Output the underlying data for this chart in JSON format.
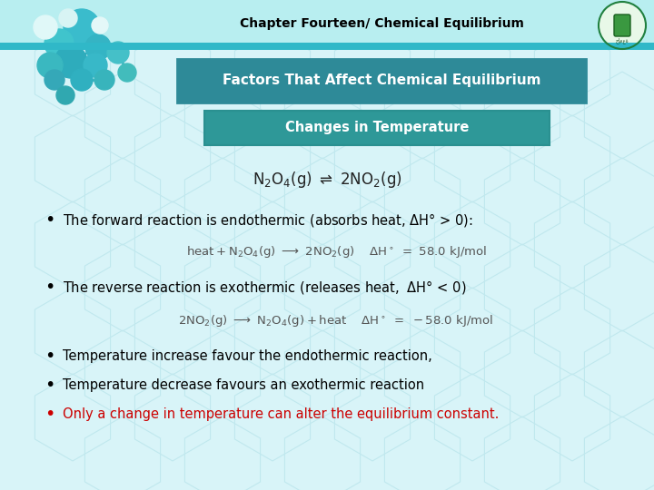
{
  "title": "Chapter Fourteen/ Chemical Equilibrium",
  "header_bg": "#B8EEF0",
  "header_stripe_color": "#30B8C8",
  "header_text_color": "#000000",
  "slide_bg": "#D8F4F8",
  "box1_text": "Factors That Affect Chemical Equilibrium",
  "box1_bg": "#2E8A98",
  "box1_text_color": "#FFFFFF",
  "box2_text": "Changes in Temperature",
  "box2_bg": "#2E9898",
  "box2_text_color": "#FFFFFF",
  "bullet_color": "#000000",
  "bullet5_color": "#CC0000",
  "font_size_title": 10,
  "font_size_box1": 11,
  "font_size_box2": 10.5,
  "font_size_bullet": 10.5,
  "font_size_eq": 9.5
}
